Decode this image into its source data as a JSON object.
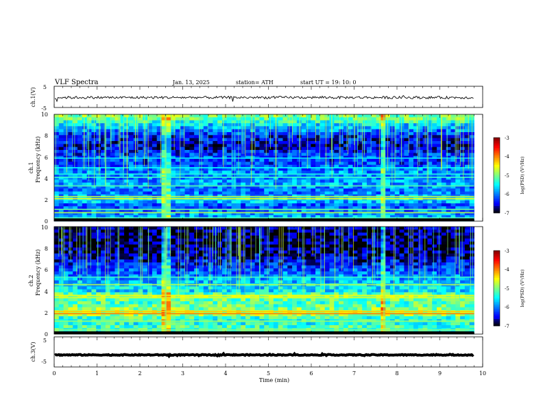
{
  "header": {
    "title": "VLF  Spectra",
    "date": "Jan.  13,  2025",
    "station": "station= ATH",
    "start": "start  UT  =    19: 10: 0"
  },
  "chart_data": {
    "type": "heatmap",
    "x": {
      "label": "Time  (min)",
      "range": [
        0,
        10
      ],
      "ticks": [
        "0",
        "1",
        "2",
        "3",
        "4",
        "5",
        "6",
        "7",
        "8",
        "9",
        "10"
      ],
      "data_end": 9.8
    },
    "panels": [
      {
        "id": "ch1-waveform",
        "type": "line",
        "ylabel": "ch.1(V)",
        "ylim": [
          -5,
          5
        ],
        "ytick_labels": [
          "5",
          "-5"
        ],
        "level": -0.3,
        "noise": 0.6
      },
      {
        "id": "ch1-spectrogram",
        "type": "heatmap",
        "ylabel": "Frequency  (kHz)",
        "ylabel2": "ch.1",
        "ylim": [
          0,
          10
        ],
        "ytick_labels": [
          "0",
          "2",
          "4",
          "6",
          "8",
          "10"
        ],
        "colorbar": {
          "label": "log(PSD) (V²/Hz)",
          "ticks": [
            "-3",
            "-4",
            "-5",
            "-6",
            "-7"
          ],
          "range": [
            -7,
            -3
          ]
        },
        "profile": [
          {
            "f": 0.0,
            "v": -6.0
          },
          {
            "f": 0.5,
            "v": -5.8
          },
          {
            "f": 1.0,
            "v": -6.1
          },
          {
            "f": 1.5,
            "v": -6.2
          },
          {
            "f": 2.0,
            "v": -5.5
          },
          {
            "f": 2.5,
            "v": -6.0
          },
          {
            "f": 3.0,
            "v": -6.1
          },
          {
            "f": 3.5,
            "v": -5.8
          },
          {
            "f": 4.0,
            "v": -6.0
          },
          {
            "f": 4.5,
            "v": -5.9
          },
          {
            "f": 5.0,
            "v": -6.1
          },
          {
            "f": 5.5,
            "v": -6.3
          },
          {
            "f": 6.0,
            "v": -6.2
          },
          {
            "f": 6.5,
            "v": -6.4
          },
          {
            "f": 7.0,
            "v": -6.6
          },
          {
            "f": 7.5,
            "v": -6.5
          },
          {
            "f": 8.0,
            "v": -6.4
          },
          {
            "f": 8.5,
            "v": -6.0
          },
          {
            "f": 9.0,
            "v": -5.7
          },
          {
            "f": 9.5,
            "v": -5.1
          },
          {
            "f": 10.0,
            "v": -5.0
          }
        ],
        "lines": [
          {
            "f": 0.3,
            "v": -5.2
          },
          {
            "f": 0.8,
            "v": -4.8
          },
          {
            "f": 1.1,
            "v": -5.1
          },
          {
            "f": 2.1,
            "v": -4.5
          },
          {
            "f": 2.3,
            "v": -4.8
          },
          {
            "f": 3.3,
            "v": -5.2
          },
          {
            "f": 4.1,
            "v": -5.3
          },
          {
            "f": 4.4,
            "v": -5.4
          },
          {
            "f": 5.0,
            "v": -5.5
          },
          {
            "f": 5.9,
            "v": -5.6
          }
        ],
        "events": [
          2.6,
          7.7
        ]
      },
      {
        "id": "ch2-spectrogram",
        "type": "heatmap",
        "ylabel": "Frequency  (kHz)",
        "ylabel2": "ch.2",
        "ylim": [
          0,
          10
        ],
        "ytick_labels": [
          "0",
          "2",
          "4",
          "6",
          "8",
          "10"
        ],
        "colorbar": {
          "label": "log(PSD) (V²/Hz)",
          "ticks": [
            "-3",
            "-4",
            "-5",
            "-6",
            "-7"
          ],
          "range": [
            -7,
            -3
          ]
        },
        "profile": [
          {
            "f": 0.0,
            "v": -5.3
          },
          {
            "f": 0.5,
            "v": -5.2
          },
          {
            "f": 1.0,
            "v": -5.4
          },
          {
            "f": 1.5,
            "v": -5.3
          },
          {
            "f": 2.0,
            "v": -4.6
          },
          {
            "f": 2.5,
            "v": -5.1
          },
          {
            "f": 3.0,
            "v": -5.2
          },
          {
            "f": 3.5,
            "v": -4.9
          },
          {
            "f": 4.0,
            "v": -5.6
          },
          {
            "f": 4.5,
            "v": -5.6
          },
          {
            "f": 5.0,
            "v": -5.8
          },
          {
            "f": 5.5,
            "v": -6.0
          },
          {
            "f": 6.0,
            "v": -6.2
          },
          {
            "f": 6.5,
            "v": -6.4
          },
          {
            "f": 7.0,
            "v": -6.6
          },
          {
            "f": 7.5,
            "v": -6.7
          },
          {
            "f": 8.0,
            "v": -6.8
          },
          {
            "f": 8.5,
            "v": -6.8
          },
          {
            "f": 9.0,
            "v": -6.8
          },
          {
            "f": 9.5,
            "v": -6.8
          },
          {
            "f": 10.0,
            "v": -6.8
          }
        ],
        "lines": [
          {
            "f": 0.4,
            "v": -5.0
          },
          {
            "f": 1.2,
            "v": -4.9
          },
          {
            "f": 1.9,
            "v": -4.0
          },
          {
            "f": 2.1,
            "v": -4.3
          },
          {
            "f": 3.4,
            "v": -4.6
          },
          {
            "f": 3.6,
            "v": -4.5
          },
          {
            "f": 4.6,
            "v": -4.8
          },
          {
            "f": 5.3,
            "v": -5.3
          }
        ],
        "events": [
          2.6,
          7.7
        ]
      },
      {
        "id": "ch3-waveform",
        "type": "line",
        "ylabel": "ch.3(V)",
        "ylim": [
          -5,
          5
        ],
        "ytick_labels": [
          "5",
          "-5"
        ],
        "level": -1.0,
        "noise": 0.15
      }
    ]
  }
}
